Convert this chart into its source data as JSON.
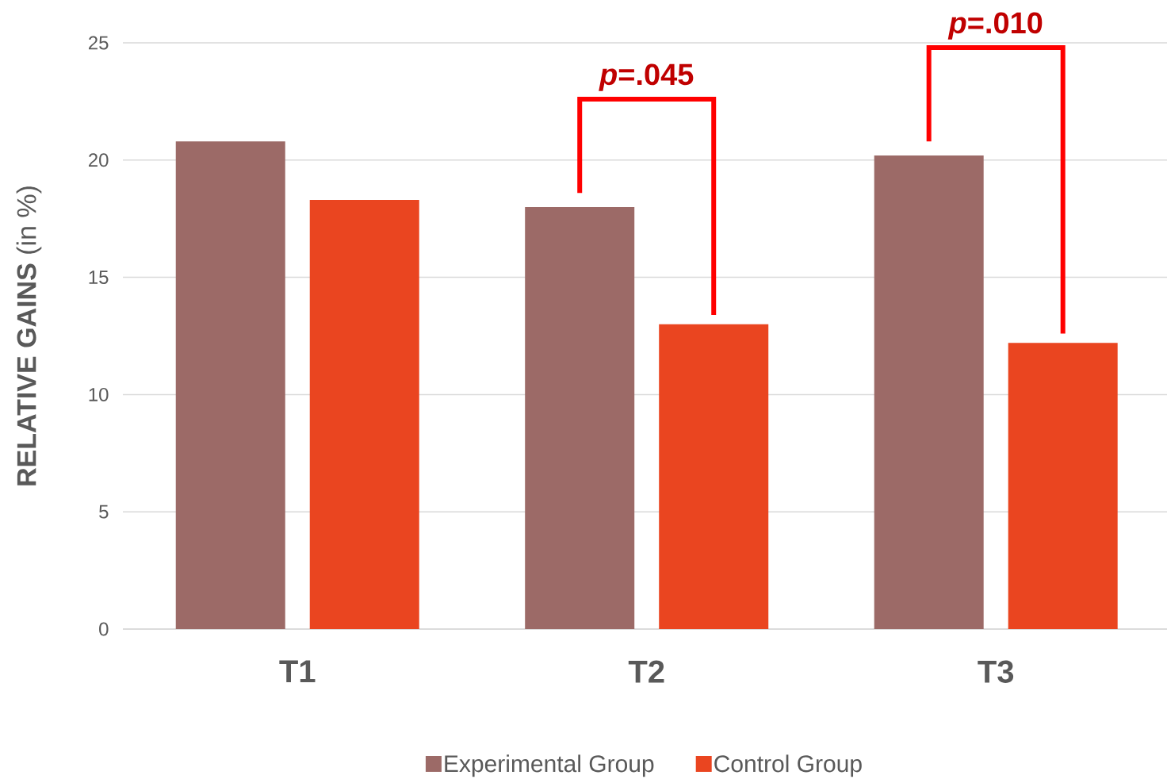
{
  "chart_data": {
    "type": "bar",
    "ylabel": "**RELATIVE GAINS** (in %)",
    "categories": [
      "T1",
      "T2",
      "T3"
    ],
    "series": [
      {
        "name": "Experimental Group",
        "color": "#9c6a67",
        "values": [
          20.8,
          18.0,
          20.2
        ]
      },
      {
        "name": "Control Group",
        "color": "#ea4520",
        "values": [
          18.3,
          13.0,
          12.2
        ]
      }
    ],
    "ylim": [
      0,
      25
    ],
    "yticks": [
      0,
      5,
      10,
      15,
      20,
      25
    ],
    "grid": "y",
    "legend": "bottom",
    "annotations": [
      "*p*=.045",
      "*p*=.010"
    ]
  }
}
